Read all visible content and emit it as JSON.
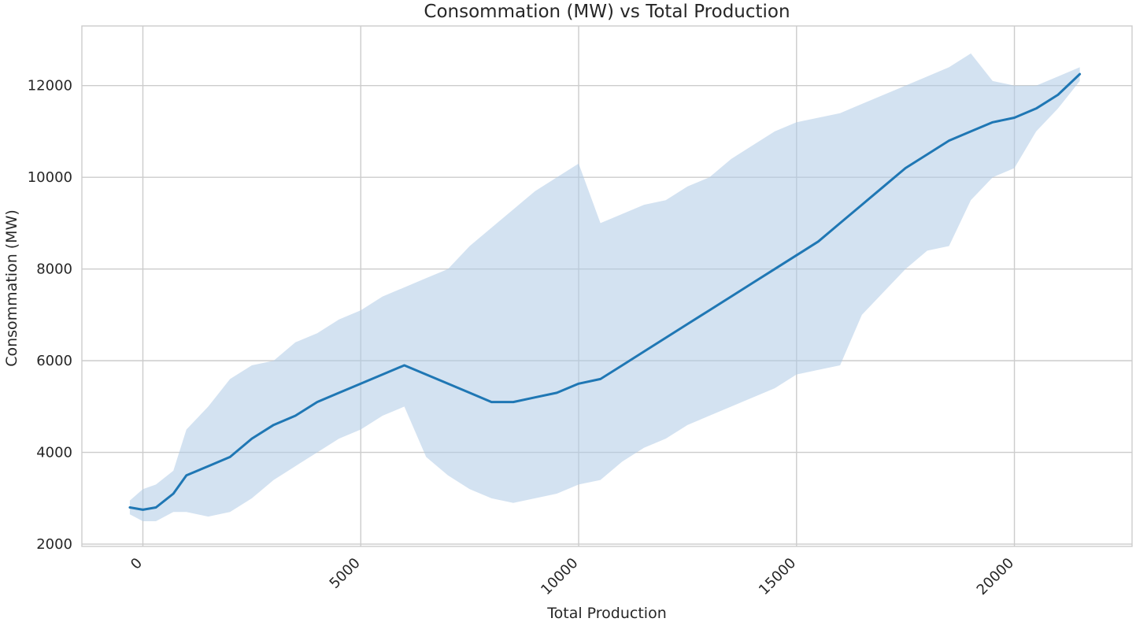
{
  "chart_data": {
    "type": "line",
    "title": "Consommation (MW) vs Total Production",
    "xlabel": "Total Production",
    "ylabel": "Consommation (MW)",
    "xlim": [
      -1400,
      22700
    ],
    "ylim": [
      1950,
      13300
    ],
    "xticks": [
      0,
      5000,
      10000,
      15000,
      20000
    ],
    "yticks": [
      2000,
      4000,
      6000,
      8000,
      10000,
      12000
    ],
    "xtick_rotation": -45,
    "grid": true,
    "legend": "none",
    "colors": {
      "line": "#1f77b4",
      "band": "#aecbe6",
      "grid": "#cccccc",
      "text": "#262626"
    },
    "series": [
      {
        "values_format": "x, mean, band_low, band_high",
        "points": [
          [
            -300,
            2800,
            2650,
            2950
          ],
          [
            0,
            2750,
            2500,
            3200
          ],
          [
            300,
            2800,
            2500,
            3300
          ],
          [
            700,
            3100,
            2700,
            3600
          ],
          [
            1000,
            3500,
            2700,
            4500
          ],
          [
            1500,
            3700,
            2600,
            5000
          ],
          [
            2000,
            3900,
            2700,
            5600
          ],
          [
            2500,
            4300,
            3000,
            5900
          ],
          [
            3000,
            4600,
            3400,
            6000
          ],
          [
            3500,
            4800,
            3700,
            6400
          ],
          [
            4000,
            5100,
            4000,
            6600
          ],
          [
            4500,
            5300,
            4300,
            6900
          ],
          [
            5000,
            5500,
            4500,
            7100
          ],
          [
            5500,
            5700,
            4800,
            7400
          ],
          [
            6000,
            5900,
            5000,
            7600
          ],
          [
            6500,
            5700,
            3900,
            7800
          ],
          [
            7000,
            5500,
            3500,
            8000
          ],
          [
            7500,
            5300,
            3200,
            8500
          ],
          [
            8000,
            5100,
            3000,
            8900
          ],
          [
            8500,
            5100,
            2900,
            9300
          ],
          [
            9000,
            5200,
            3000,
            9700
          ],
          [
            9500,
            5300,
            3100,
            10000
          ],
          [
            10000,
            5500,
            3300,
            10300
          ],
          [
            10500,
            5600,
            3400,
            9000
          ],
          [
            11000,
            5900,
            3800,
            9200
          ],
          [
            11500,
            6200,
            4100,
            9400
          ],
          [
            12000,
            6500,
            4300,
            9500
          ],
          [
            12500,
            6800,
            4600,
            9800
          ],
          [
            13000,
            7100,
            4800,
            10000
          ],
          [
            13500,
            7400,
            5000,
            10400
          ],
          [
            14000,
            7700,
            5200,
            10700
          ],
          [
            14500,
            8000,
            5400,
            11000
          ],
          [
            15000,
            8300,
            5700,
            11200
          ],
          [
            15500,
            8600,
            5800,
            11300
          ],
          [
            16000,
            9000,
            5900,
            11400
          ],
          [
            16500,
            9400,
            7000,
            11600
          ],
          [
            17000,
            9800,
            7500,
            11800
          ],
          [
            17500,
            10200,
            8000,
            12000
          ],
          [
            18000,
            10500,
            8400,
            12200
          ],
          [
            18500,
            10800,
            8500,
            12400
          ],
          [
            19000,
            11000,
            9500,
            12700
          ],
          [
            19500,
            11200,
            10000,
            12100
          ],
          [
            20000,
            11300,
            10200,
            12000
          ],
          [
            20500,
            11500,
            11000,
            12000
          ],
          [
            21000,
            11800,
            11500,
            12200
          ],
          [
            21500,
            12250,
            12100,
            12400
          ]
        ]
      }
    ]
  }
}
